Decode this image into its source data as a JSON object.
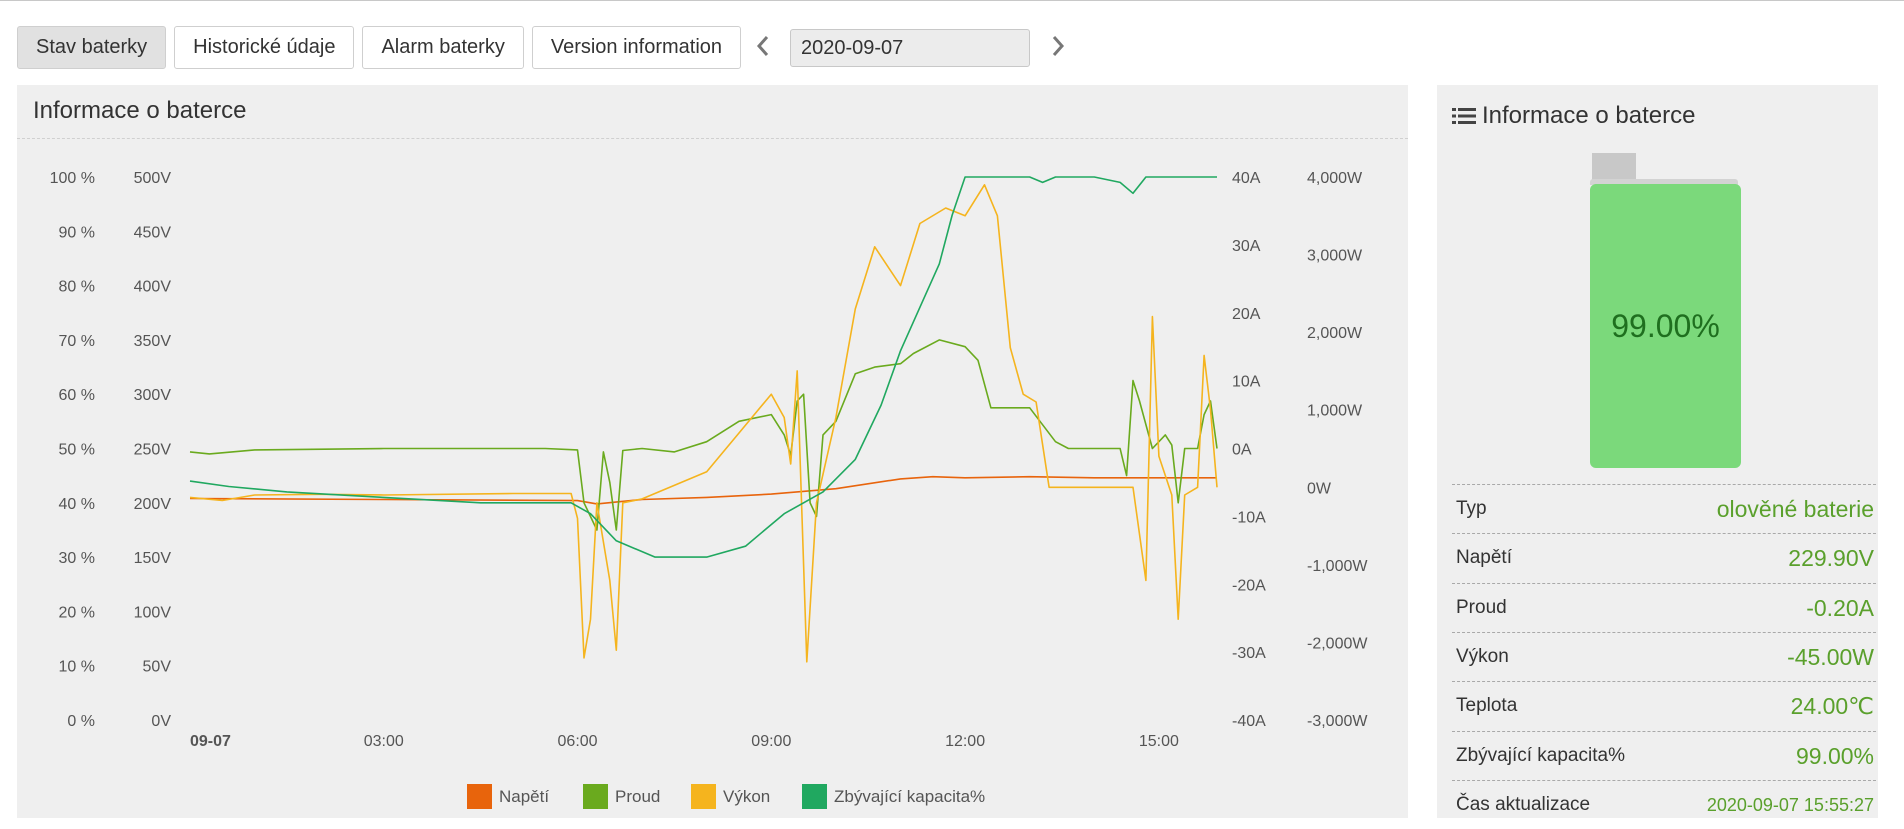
{
  "tabs": [
    {
      "label": "Stav baterky",
      "active": true
    },
    {
      "label": "Historické údaje",
      "active": false
    },
    {
      "label": "Alarm baterky",
      "active": false
    },
    {
      "label": "Version information",
      "active": false
    }
  ],
  "date": {
    "value": "2020-09-07"
  },
  "icons": {
    "prev": "chevron-left-icon",
    "next": "chevron-right-icon",
    "list": "list-icon"
  },
  "chart_panel": {
    "title": "Informace o baterce"
  },
  "chart_data": {
    "type": "line",
    "title": "",
    "x_ticks": [
      "09-07",
      "03:00",
      "06:00",
      "09:00",
      "12:00",
      "15:00"
    ],
    "x_range_hours": [
      0,
      15.9
    ],
    "axes": {
      "percent": {
        "ticks": [
          "100 %",
          "90 %",
          "80 %",
          "70 %",
          "60 %",
          "50 %",
          "40 %",
          "30 %",
          "20 %",
          "10 %",
          "0 %"
        ],
        "range": [
          0,
          100
        ]
      },
      "voltage": {
        "ticks": [
          "500V",
          "450V",
          "400V",
          "350V",
          "300V",
          "250V",
          "200V",
          "150V",
          "100V",
          "50V",
          "0V"
        ],
        "range": [
          0,
          500
        ]
      },
      "current": {
        "ticks": [
          "40A",
          "30A",
          "20A",
          "10A",
          "0A",
          "-10A",
          "-20A",
          "-30A",
          "-40A"
        ],
        "range": [
          -40,
          40
        ]
      },
      "power": {
        "ticks": [
          "4,000W",
          "3,000W",
          "2,000W",
          "1,000W",
          "0W",
          "-1,000W",
          "-2,000W",
          "-3,000W"
        ],
        "range": [
          -3000,
          4000
        ]
      }
    },
    "legend": [
      {
        "name": "Napětí",
        "color": "#e8640c"
      },
      {
        "name": "Proud",
        "color": "#6aaa1e"
      },
      {
        "name": "Výkon",
        "color": "#f5b41e"
      },
      {
        "name": "Zbývající kapacita%",
        "color": "#20a860"
      }
    ],
    "series": [
      {
        "name": "Napětí",
        "axis": "voltage",
        "color": "#e8640c",
        "points": [
          [
            0,
            204
          ],
          [
            3,
            203
          ],
          [
            6,
            202
          ],
          [
            6.3,
            199
          ],
          [
            7,
            203
          ],
          [
            8,
            205
          ],
          [
            9,
            208
          ],
          [
            10,
            213
          ],
          [
            11,
            222
          ],
          [
            11.5,
            224
          ],
          [
            12,
            223
          ],
          [
            13,
            224
          ],
          [
            14,
            223
          ],
          [
            15.9,
            223
          ]
        ]
      },
      {
        "name": "Proud",
        "axis": "current",
        "color": "#6aaa1e",
        "points": [
          [
            0,
            -0.5
          ],
          [
            0.3,
            -0.8
          ],
          [
            1,
            -0.2
          ],
          [
            3,
            0
          ],
          [
            5.5,
            0
          ],
          [
            6,
            -0.2
          ],
          [
            6.1,
            -8
          ],
          [
            6.3,
            -12
          ],
          [
            6.4,
            -0.5
          ],
          [
            6.5,
            -5
          ],
          [
            6.6,
            -12
          ],
          [
            6.7,
            -0.3
          ],
          [
            7,
            0
          ],
          [
            7.5,
            -0.5
          ],
          [
            8,
            1
          ],
          [
            8.5,
            4
          ],
          [
            9,
            5
          ],
          [
            9.2,
            2
          ],
          [
            9.3,
            -1
          ],
          [
            9.4,
            7
          ],
          [
            9.5,
            8
          ],
          [
            9.6,
            -8
          ],
          [
            9.7,
            -10
          ],
          [
            9.8,
            2
          ],
          [
            10,
            4
          ],
          [
            10.3,
            11
          ],
          [
            10.6,
            12
          ],
          [
            11,
            12.5
          ],
          [
            11.2,
            14
          ],
          [
            11.6,
            16
          ],
          [
            12,
            15
          ],
          [
            12.2,
            13
          ],
          [
            12.4,
            6
          ],
          [
            12.8,
            6
          ],
          [
            13,
            6
          ],
          [
            13.4,
            1
          ],
          [
            13.6,
            0
          ],
          [
            13.9,
            0
          ],
          [
            14.4,
            0
          ],
          [
            14.5,
            -4
          ],
          [
            14.6,
            10
          ],
          [
            14.7,
            7
          ],
          [
            14.9,
            0
          ],
          [
            15.1,
            2
          ],
          [
            15.2,
            0.5
          ],
          [
            15.3,
            -8
          ],
          [
            15.4,
            0
          ],
          [
            15.6,
            0
          ],
          [
            15.7,
            5
          ],
          [
            15.8,
            7
          ],
          [
            15.9,
            0
          ]
        ]
      },
      {
        "name": "Výkon",
        "axis": "power",
        "color": "#f5b41e",
        "points": [
          [
            0,
            -130
          ],
          [
            0.5,
            -170
          ],
          [
            1,
            -100
          ],
          [
            2,
            -90
          ],
          [
            3,
            -100
          ],
          [
            5,
            -80
          ],
          [
            5.9,
            -80
          ],
          [
            6,
            -400
          ],
          [
            6.1,
            -2200
          ],
          [
            6.2,
            -1700
          ],
          [
            6.3,
            -200
          ],
          [
            6.5,
            -1200
          ],
          [
            6.6,
            -2100
          ],
          [
            6.7,
            -200
          ],
          [
            7,
            -150
          ],
          [
            8,
            200
          ],
          [
            8.5,
            700
          ],
          [
            9,
            1200
          ],
          [
            9.2,
            900
          ],
          [
            9.3,
            300
          ],
          [
            9.4,
            1500
          ],
          [
            9.55,
            -2250
          ],
          [
            9.7,
            -200
          ],
          [
            10,
            900
          ],
          [
            10.3,
            2300
          ],
          [
            10.6,
            3100
          ],
          [
            11,
            2600
          ],
          [
            11.3,
            3400
          ],
          [
            11.7,
            3600
          ],
          [
            12,
            3500
          ],
          [
            12.3,
            3900
          ],
          [
            12.5,
            3500
          ],
          [
            12.7,
            1800
          ],
          [
            12.9,
            1200
          ],
          [
            13.1,
            1100
          ],
          [
            13.3,
            0
          ],
          [
            13.5,
            0
          ],
          [
            14,
            0
          ],
          [
            14.6,
            0
          ],
          [
            14.8,
            -1200
          ],
          [
            14.9,
            2200
          ],
          [
            15.0,
            400
          ],
          [
            15.2,
            -100
          ],
          [
            15.3,
            -1700
          ],
          [
            15.4,
            -100
          ],
          [
            15.6,
            0
          ],
          [
            15.7,
            1700
          ],
          [
            15.8,
            1000
          ],
          [
            15.9,
            0
          ]
        ]
      },
      {
        "name": "Zbývající kapacita%",
        "axis": "percent",
        "color": "#20a860",
        "points": [
          [
            0,
            44
          ],
          [
            0.6,
            43
          ],
          [
            1.5,
            42
          ],
          [
            3,
            41
          ],
          [
            4.5,
            40
          ],
          [
            5.9,
            40
          ],
          [
            6.2,
            38
          ],
          [
            6.6,
            33
          ],
          [
            7.2,
            30
          ],
          [
            8,
            30
          ],
          [
            8.6,
            32
          ],
          [
            9.2,
            38
          ],
          [
            9.8,
            42
          ],
          [
            10.3,
            48
          ],
          [
            10.7,
            58
          ],
          [
            11,
            68
          ],
          [
            11.3,
            76
          ],
          [
            11.6,
            84
          ],
          [
            11.8,
            93
          ],
          [
            12,
            100
          ],
          [
            12.5,
            100
          ],
          [
            13,
            100
          ],
          [
            13.2,
            99
          ],
          [
            13.4,
            100
          ],
          [
            14,
            100
          ],
          [
            14.4,
            99
          ],
          [
            14.6,
            97
          ],
          [
            14.8,
            100
          ],
          [
            15.9,
            100
          ]
        ]
      }
    ]
  },
  "info_panel": {
    "title": "Informace o baterce",
    "battery_level_label": "99.00%",
    "battery_level": 0.99,
    "rows": [
      {
        "label": "Typ",
        "value": "olověné baterie"
      },
      {
        "label": "Napětí",
        "value": "229.90V"
      },
      {
        "label": "Proud",
        "value": "-0.20A"
      },
      {
        "label": "Výkon",
        "value": "-45.00W"
      },
      {
        "label": "Teplota",
        "value": "24.00℃"
      },
      {
        "label": "Zbývající kapacita%",
        "value": "99.00%"
      },
      {
        "label": "Čas aktualizace",
        "value": "2020-09-07 15:55:27"
      }
    ]
  }
}
